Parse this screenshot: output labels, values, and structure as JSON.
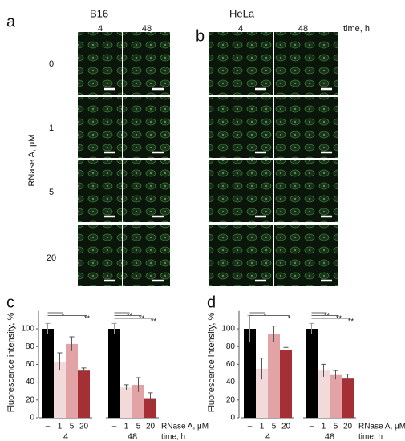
{
  "micrographs": {
    "panels": [
      {
        "label": "a",
        "cell_line": "B16",
        "times": [
          "4",
          "48"
        ]
      },
      {
        "label": "b",
        "cell_line": "HeLa",
        "times": [
          "4",
          "48"
        ]
      }
    ],
    "time_label": "time, h",
    "concentration_label": "RNase A, μM",
    "concentrations": [
      "0",
      "1",
      "5",
      "20"
    ]
  },
  "chart_data": [
    {
      "type": "bar",
      "label": "c",
      "ylabel": "Fluorescence intensity, %",
      "ylim": [
        0,
        120
      ],
      "yticks": [
        0,
        20,
        40,
        60,
        80,
        100
      ],
      "colors": [
        "#000000",
        "#f3dada",
        "#e2a3a6",
        "#a52f34"
      ],
      "category_label": "RNase A, μM",
      "group_label": "time, h",
      "groups": [
        {
          "label": "4",
          "categories": [
            "–",
            "1",
            "5",
            "20"
          ],
          "values": [
            100,
            63,
            83,
            53
          ],
          "errors": [
            6,
            10,
            8,
            3
          ],
          "significance": [
            null,
            "*",
            null,
            "**"
          ]
        },
        {
          "label": "48",
          "categories": [
            "–",
            "1",
            "5",
            "20"
          ],
          "values": [
            100,
            34,
            37,
            22
          ],
          "errors": [
            6,
            3,
            8,
            6
          ],
          "significance": [
            null,
            "**",
            "**",
            "**"
          ]
        }
      ]
    },
    {
      "type": "bar",
      "label": "d",
      "ylabel": "Fluorescence intensity, %",
      "ylim": [
        0,
        120
      ],
      "yticks": [
        0,
        20,
        40,
        60,
        80,
        100
      ],
      "colors": [
        "#000000",
        "#f3dada",
        "#e2a3a6",
        "#a52f34"
      ],
      "category_label": "RNase A, μM",
      "group_label": "time, h",
      "groups": [
        {
          "label": "4",
          "categories": [
            "–",
            "1",
            "5",
            "20"
          ],
          "values": [
            100,
            55,
            94,
            76
          ],
          "errors": [
            15,
            12,
            9,
            3
          ],
          "significance": [
            null,
            "*",
            null,
            "*"
          ]
        },
        {
          "label": "48",
          "categories": [
            "–",
            "1",
            "5",
            "20"
          ],
          "values": [
            100,
            53,
            48,
            44
          ],
          "errors": [
            6,
            7,
            5,
            5
          ],
          "significance": [
            null,
            "**",
            "**",
            "**"
          ]
        }
      ]
    }
  ]
}
